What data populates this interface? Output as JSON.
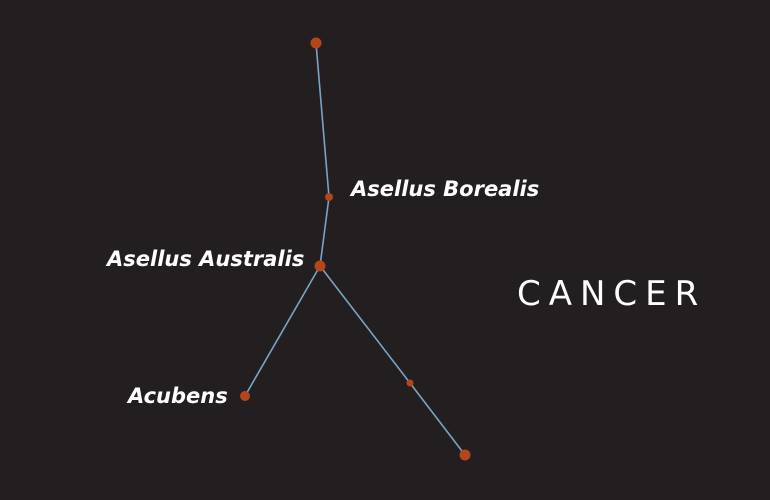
{
  "constellation": {
    "title": "CANCER",
    "colors": {
      "background": "#231f20",
      "star": "#b5461a",
      "line": "#7aa3c4",
      "label": "#ffffff"
    },
    "stars": [
      {
        "id": "iota",
        "label": ""
      },
      {
        "id": "asellus-borealis",
        "label": "Asellus Borealis"
      },
      {
        "id": "asellus-australis",
        "label": "Asellus Australis"
      },
      {
        "id": "acubens",
        "label": "Acubens"
      },
      {
        "id": "beta-mid",
        "label": ""
      },
      {
        "id": "beta",
        "label": ""
      }
    ],
    "connections": [
      [
        "iota",
        "asellus-borealis"
      ],
      [
        "asellus-borealis",
        "asellus-australis"
      ],
      [
        "asellus-australis",
        "acubens"
      ],
      [
        "asellus-australis",
        "beta-mid"
      ],
      [
        "beta-mid",
        "beta"
      ]
    ]
  }
}
